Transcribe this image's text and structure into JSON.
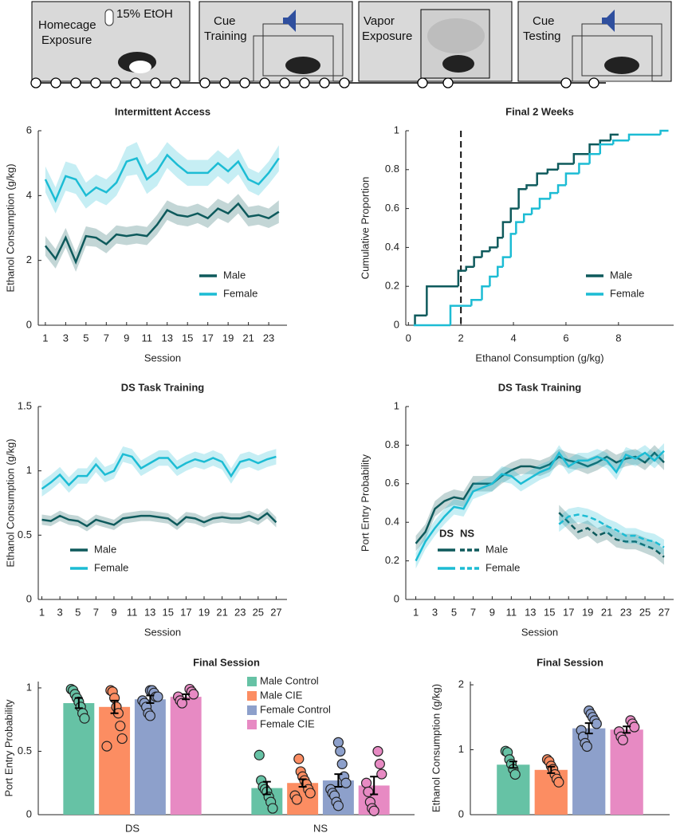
{
  "protocol": {
    "annotation": "15% EtOH",
    "stages": [
      {
        "lines": [
          "Homecage",
          "Exposure"
        ]
      },
      {
        "lines": [
          "Cue",
          "Training"
        ]
      },
      {
        "lines": [
          "Vapor",
          "Exposure"
        ]
      },
      {
        "lines": [
          "Cue",
          "Testing"
        ]
      }
    ]
  },
  "chart_data": [
    {
      "type": "line",
      "title": "Intermittent Access",
      "x_label": "Session",
      "y_label": "Ethanol Consumption (g/kg)",
      "x": [
        1,
        2,
        3,
        4,
        5,
        6,
        7,
        8,
        9,
        10,
        11,
        12,
        13,
        14,
        15,
        16,
        17,
        18,
        19,
        20,
        21,
        22,
        23,
        24
      ],
      "xlim": [
        0.3,
        24.8
      ],
      "xticks": [
        1,
        3,
        5,
        7,
        9,
        11,
        13,
        15,
        17,
        19,
        21,
        23
      ],
      "ylim": [
        0,
        6
      ],
      "yticks": [
        0,
        2,
        4,
        6
      ],
      "legend_loc": "lower right",
      "series": [
        {
          "name": "Male",
          "color": "#0e5a5c",
          "values": [
            2.45,
            2.05,
            2.7,
            1.95,
            2.75,
            2.7,
            2.5,
            2.8,
            2.75,
            2.8,
            2.75,
            3.1,
            3.55,
            3.4,
            3.35,
            3.45,
            3.3,
            3.6,
            3.45,
            3.75,
            3.35,
            3.4,
            3.3,
            3.5
          ],
          "error": [
            0.3,
            0.3,
            0.3,
            0.3,
            0.3,
            0.28,
            0.28,
            0.28,
            0.28,
            0.28,
            0.28,
            0.3,
            0.3,
            0.3,
            0.3,
            0.3,
            0.3,
            0.3,
            0.3,
            0.3,
            0.3,
            0.3,
            0.3,
            0.35
          ]
        },
        {
          "name": "Female",
          "color": "#1cbcd4",
          "values": [
            4.5,
            3.85,
            4.6,
            4.5,
            4.0,
            4.25,
            4.1,
            4.4,
            5.05,
            5.15,
            4.5,
            4.75,
            5.25,
            4.95,
            4.7,
            4.7,
            4.7,
            5.0,
            4.75,
            5.05,
            4.5,
            4.35,
            4.7,
            5.15
          ],
          "error": [
            0.4,
            0.4,
            0.45,
            0.45,
            0.4,
            0.4,
            0.4,
            0.4,
            0.45,
            0.5,
            0.45,
            0.45,
            0.4,
            0.4,
            0.4,
            0.4,
            0.4,
            0.4,
            0.4,
            0.4,
            0.35,
            0.35,
            0.35,
            0.4
          ]
        }
      ]
    },
    {
      "type": "step",
      "title": "Final 2 Weeks",
      "x_label": "Ethanol Consumption (g/kg)",
      "y_label": "Cumulative Proportion",
      "xlim": [
        -0.1,
        10.1
      ],
      "xticks": [
        0,
        2,
        4,
        6,
        8
      ],
      "ylim": [
        0,
        1
      ],
      "yticks": [
        0,
        0.2,
        0.4,
        0.6,
        0.8,
        1
      ],
      "legend_loc": "lower right",
      "reference_line": {
        "x": 2
      },
      "series": [
        {
          "name": "Male",
          "color": "#0e5a5c",
          "x": [
            0.25,
            0.7,
            1.9,
            2.2,
            2.5,
            2.8,
            3.1,
            3.4,
            3.6,
            3.9,
            4.2,
            4.5,
            4.9,
            5.3,
            5.7,
            6.3,
            6.9,
            7.3,
            7.7
          ],
          "values": [
            0.05,
            0.2,
            0.28,
            0.3,
            0.35,
            0.38,
            0.4,
            0.45,
            0.53,
            0.6,
            0.7,
            0.72,
            0.78,
            0.8,
            0.83,
            0.88,
            0.93,
            0.95,
            0.98
          ]
        },
        {
          "name": "Female",
          "color": "#1cbcd4",
          "x": [
            0.2,
            1.6,
            2.4,
            2.8,
            3.1,
            3.4,
            3.6,
            3.9,
            4.1,
            4.4,
            4.7,
            5.0,
            5.4,
            5.7,
            6.0,
            6.5,
            6.9,
            7.3,
            7.8,
            8.4,
            9.6
          ],
          "values": [
            0.0,
            0.1,
            0.13,
            0.2,
            0.25,
            0.3,
            0.35,
            0.47,
            0.53,
            0.57,
            0.6,
            0.65,
            0.68,
            0.72,
            0.78,
            0.83,
            0.88,
            0.93,
            0.95,
            0.98,
            1.0
          ]
        }
      ]
    },
    {
      "type": "line",
      "title": "DS Task Training",
      "x_label": "Session",
      "y_label": "Ethanol Consumption (g/kg)",
      "x": [
        1,
        2,
        3,
        4,
        5,
        6,
        7,
        8,
        9,
        10,
        11,
        12,
        13,
        14,
        15,
        16,
        17,
        18,
        19,
        20,
        21,
        22,
        23,
        24,
        25,
        26,
        27
      ],
      "xlim": [
        0.6,
        28.2
      ],
      "xticks": [
        1,
        3,
        5,
        7,
        9,
        11,
        13,
        15,
        17,
        19,
        21,
        23,
        25,
        27
      ],
      "ylim": [
        0,
        1.5
      ],
      "yticks": [
        0,
        0.5,
        1,
        1.5
      ],
      "legend_loc": "lower left",
      "series": [
        {
          "name": "Male",
          "color": "#0e5a5c",
          "values": [
            0.62,
            0.61,
            0.65,
            0.62,
            0.61,
            0.57,
            0.62,
            0.6,
            0.58,
            0.63,
            0.64,
            0.65,
            0.65,
            0.64,
            0.63,
            0.58,
            0.64,
            0.63,
            0.6,
            0.63,
            0.64,
            0.63,
            0.63,
            0.65,
            0.62,
            0.67,
            0.6
          ],
          "error": [
            0.04,
            0.04,
            0.04,
            0.04,
            0.04,
            0.04,
            0.04,
            0.04,
            0.04,
            0.04,
            0.04,
            0.04,
            0.04,
            0.04,
            0.04,
            0.04,
            0.04,
            0.04,
            0.04,
            0.04,
            0.04,
            0.04,
            0.04,
            0.04,
            0.04,
            0.04,
            0.04
          ]
        },
        {
          "name": "Female",
          "color": "#1cbcd4",
          "values": [
            0.86,
            0.91,
            0.97,
            0.89,
            0.96,
            0.96,
            1.05,
            0.97,
            1.0,
            1.13,
            1.11,
            1.02,
            1.06,
            1.1,
            1.1,
            1.02,
            1.06,
            1.09,
            1.07,
            1.1,
            1.07,
            0.96,
            1.07,
            1.09,
            1.06,
            1.09,
            1.11
          ],
          "error": [
            0.06,
            0.06,
            0.06,
            0.06,
            0.06,
            0.06,
            0.06,
            0.06,
            0.06,
            0.06,
            0.06,
            0.06,
            0.06,
            0.06,
            0.06,
            0.06,
            0.06,
            0.06,
            0.06,
            0.06,
            0.06,
            0.06,
            0.06,
            0.06,
            0.06,
            0.06,
            0.06
          ]
        }
      ]
    },
    {
      "type": "line",
      "title": "DS Task Training",
      "x_label": "Session",
      "y_label": "Port Entry Probability",
      "x": [
        1,
        2,
        3,
        4,
        5,
        6,
        7,
        8,
        9,
        10,
        11,
        12,
        13,
        14,
        15,
        16,
        17,
        18,
        19,
        20,
        21,
        22,
        23,
        24,
        25,
        26,
        27
      ],
      "xlim": [
        -0.05,
        28.0
      ],
      "xticks": [
        1,
        3,
        5,
        7,
        9,
        11,
        13,
        15,
        17,
        19,
        21,
        23,
        25,
        27
      ],
      "ylim": [
        0,
        1
      ],
      "yticks": [
        0,
        0.2,
        0.4,
        0.6,
        0.8,
        1
      ],
      "legend_loc": "lower left",
      "legend_columns": [
        "DS",
        "NS"
      ],
      "series": [
        {
          "name": "Male",
          "color": "#0e5a5c",
          "values": [
            0.29,
            0.35,
            0.47,
            0.51,
            0.53,
            0.52,
            0.6,
            0.6,
            0.6,
            0.64,
            0.67,
            0.69,
            0.69,
            0.68,
            0.7,
            0.74,
            0.72,
            0.71,
            0.69,
            0.71,
            0.74,
            0.71,
            0.73,
            0.74,
            0.71,
            0.76,
            0.71
          ],
          "error": [
            0.04,
            0.04,
            0.04,
            0.04,
            0.04,
            0.04,
            0.04,
            0.04,
            0.04,
            0.04,
            0.04,
            0.04,
            0.04,
            0.04,
            0.04,
            0.04,
            0.04,
            0.04,
            0.04,
            0.04,
            0.04,
            0.04,
            0.04,
            0.04,
            0.04,
            0.04,
            0.04
          ],
          "ns_values": [
            null,
            null,
            null,
            null,
            null,
            null,
            null,
            null,
            null,
            null,
            null,
            null,
            null,
            null,
            null,
            0.45,
            0.4,
            0.35,
            0.37,
            0.33,
            0.35,
            0.31,
            0.3,
            0.3,
            0.28,
            0.26,
            0.22
          ],
          "ns_error": [
            null,
            null,
            null,
            null,
            null,
            null,
            null,
            null,
            null,
            null,
            null,
            null,
            null,
            null,
            null,
            0.04,
            0.04,
            0.04,
            0.04,
            0.04,
            0.04,
            0.04,
            0.04,
            0.04,
            0.04,
            0.04,
            0.04
          ]
        },
        {
          "name": "Female",
          "color": "#1cbcd4",
          "values": [
            0.2,
            0.3,
            0.37,
            0.43,
            0.48,
            0.47,
            0.56,
            0.58,
            0.6,
            0.65,
            0.64,
            0.6,
            0.63,
            0.66,
            0.68,
            0.76,
            0.69,
            0.72,
            0.72,
            0.74,
            0.72,
            0.66,
            0.75,
            0.73,
            0.76,
            0.72,
            0.77
          ],
          "error": [
            0.04,
            0.04,
            0.04,
            0.04,
            0.04,
            0.04,
            0.04,
            0.04,
            0.04,
            0.04,
            0.04,
            0.04,
            0.04,
            0.04,
            0.04,
            0.04,
            0.04,
            0.04,
            0.04,
            0.04,
            0.04,
            0.04,
            0.04,
            0.04,
            0.04,
            0.04,
            0.04
          ],
          "ns_values": [
            null,
            null,
            null,
            null,
            null,
            null,
            null,
            null,
            null,
            null,
            null,
            null,
            null,
            null,
            null,
            0.39,
            0.43,
            0.44,
            0.43,
            0.41,
            0.38,
            0.36,
            0.33,
            0.33,
            0.31,
            0.3,
            0.27
          ],
          "ns_error": [
            null,
            null,
            null,
            null,
            null,
            null,
            null,
            null,
            null,
            null,
            null,
            null,
            null,
            null,
            null,
            0.04,
            0.04,
            0.04,
            0.04,
            0.04,
            0.04,
            0.04,
            0.04,
            0.04,
            0.04,
            0.04,
            0.04
          ]
        }
      ]
    },
    {
      "type": "grouped_bar",
      "title": "Final Session",
      "y_label": "Port Entry Probability",
      "categories": [
        "DS",
        "NS"
      ],
      "ylim": [
        0,
        1.05
      ],
      "yticks": [
        0,
        0.5,
        1
      ],
      "legend": true,
      "legend_loc": "upper right",
      "series": [
        {
          "name": "Male Control",
          "color": "#66c2a5",
          "values": [
            0.88,
            0.21
          ],
          "error": [
            0.04,
            0.05
          ],
          "points": [
            [
              0.99,
              0.98,
              0.95,
              0.92,
              0.89,
              0.85,
              0.8,
              0.76
            ],
            [
              0.47,
              0.27,
              0.22,
              0.2,
              0.18,
              0.14,
              0.1,
              0.05
            ]
          ]
        },
        {
          "name": "Male CIE",
          "color": "#fc8d62",
          "values": [
            0.85,
            0.25
          ],
          "error": [
            0.05,
            0.03
          ],
          "points": [
            [
              0.98,
              0.97,
              0.92,
              0.85,
              0.8,
              0.7,
              0.6,
              0.54
            ],
            [
              0.44,
              0.34,
              0.3,
              0.27,
              0.24,
              0.2,
              0.17,
              0.15,
              0.12
            ]
          ]
        },
        {
          "name": "Female Control",
          "color": "#8da0cb",
          "values": [
            0.91,
            0.27
          ],
          "error": [
            0.03,
            0.05
          ],
          "points": [
            [
              0.98,
              0.98,
              0.96,
              0.93,
              0.93,
              0.9,
              0.88,
              0.85,
              0.8,
              0.78
            ],
            [
              0.57,
              0.5,
              0.4,
              0.3,
              0.25,
              0.2,
              0.17,
              0.15,
              0.1,
              0.07
            ]
          ]
        },
        {
          "name": "Female CIE",
          "color": "#e78ac3",
          "values": [
            0.93,
            0.23
          ],
          "error": [
            0.02,
            0.07
          ],
          "points": [
            [
              0.99,
              0.97,
              0.95,
              0.93,
              0.9,
              0.88
            ],
            [
              0.5,
              0.4,
              0.32,
              0.25,
              0.18,
              0.1,
              0.05,
              0.03
            ]
          ]
        }
      ]
    },
    {
      "type": "grouped_bar",
      "title": "Final Session",
      "y_label": "Ethanol Consumption (g/kg)",
      "categories": [
        null
      ],
      "ylim": [
        0,
        2.05
      ],
      "yticks": [
        0,
        1,
        2
      ],
      "legend": false,
      "series": [
        {
          "name": "Male Control",
          "color": "#66c2a5",
          "values": [
            0.77
          ],
          "error": [
            0.05
          ],
          "points": [
            [
              0.98,
              0.96,
              0.85,
              0.78,
              0.7,
              0.62
            ]
          ]
        },
        {
          "name": "Male CIE",
          "color": "#fc8d62",
          "values": [
            0.69
          ],
          "error": [
            0.05
          ],
          "points": [
            [
              0.85,
              0.82,
              0.75,
              0.7,
              0.62,
              0.55,
              0.5
            ]
          ]
        },
        {
          "name": "Female Control",
          "color": "#8da0cb",
          "values": [
            1.33
          ],
          "error": [
            0.08
          ],
          "points": [
            [
              1.6,
              1.55,
              1.5,
              1.45,
              1.4,
              1.3,
              1.2,
              1.1,
              1.05
            ]
          ]
        },
        {
          "name": "Female CIE",
          "color": "#e78ac3",
          "values": [
            1.31
          ],
          "error": [
            0.05
          ],
          "points": [
            [
              1.45,
              1.4,
              1.35,
              1.28,
              1.2,
              1.15
            ]
          ]
        }
      ]
    }
  ]
}
